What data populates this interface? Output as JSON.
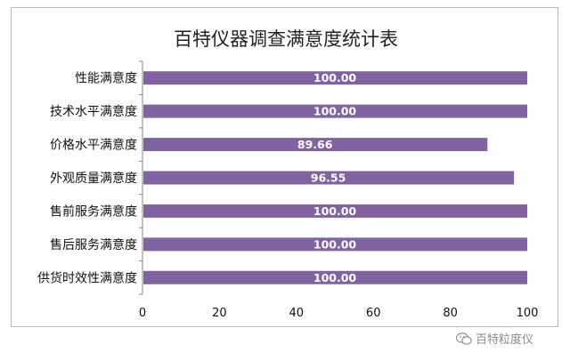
{
  "chart_data": {
    "type": "bar",
    "orientation": "horizontal",
    "title": "百特仪器调查满意度统计表",
    "categories": [
      "性能满意度",
      "技术水平满意度",
      "价格水平满意度",
      "外观质量满意度",
      "售前服务满意度",
      "售后服务满意度",
      "供货时效性满意度"
    ],
    "values": [
      100.0,
      100.0,
      89.66,
      96.55,
      100.0,
      100.0,
      100.0
    ],
    "value_labels": [
      "100.00",
      "100.00",
      "89.66",
      "96.55",
      "100.00",
      "100.00",
      "100.00"
    ],
    "xlim": [
      0,
      100
    ],
    "x_ticks": [
      "0",
      "20",
      "40",
      "60",
      "80",
      "100"
    ],
    "grid": false,
    "legend": "none",
    "bar_color": "#8064a2"
  },
  "watermark": {
    "icon": "wechat-icon",
    "text": "百特粒度仪"
  }
}
